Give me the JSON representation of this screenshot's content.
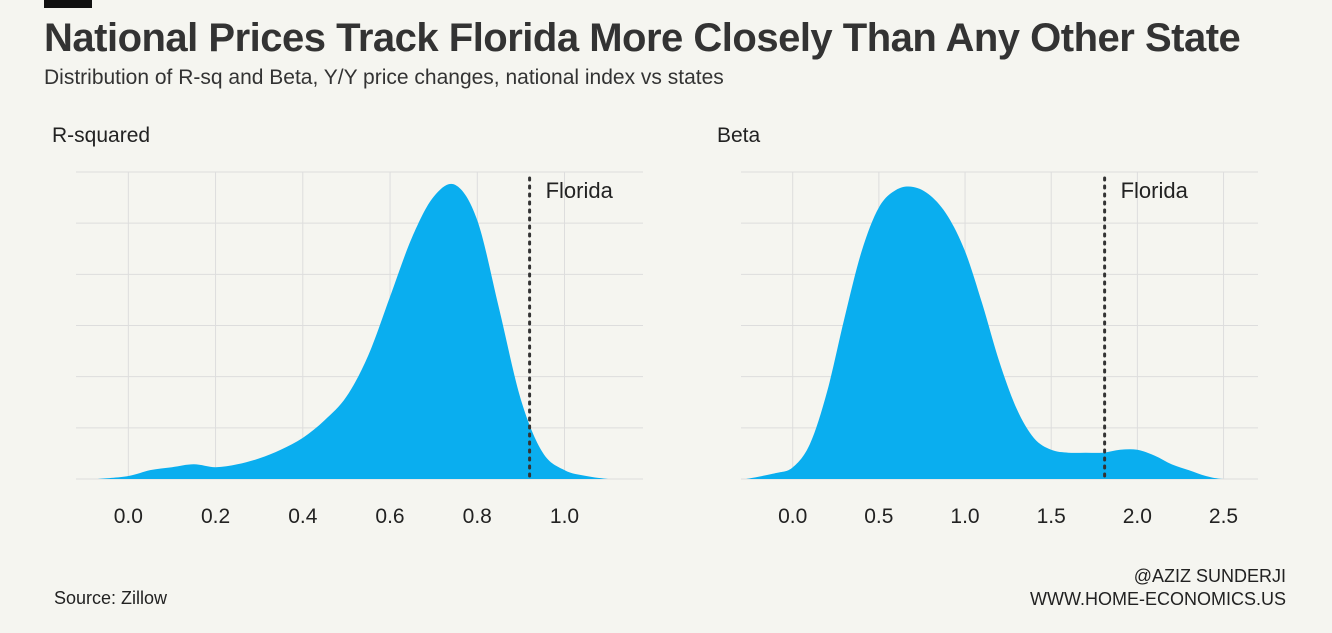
{
  "header": {
    "title": "National Prices Track Florida More Closely Than Any Other State",
    "subtitle": "Distribution of R-sq and Beta, Y/Y price changes, national index vs states"
  },
  "colors": {
    "fill": "#0aaeef",
    "grid": "#dddddd",
    "marker": "#333333"
  },
  "chart_data": [
    {
      "type": "area",
      "title": "R-squared",
      "xlim": [
        -0.12,
        1.18
      ],
      "ylim": [
        0,
        1.0
      ],
      "xticks": [
        "0.0",
        "0.2",
        "0.4",
        "0.6",
        "0.8",
        "1.0"
      ],
      "grid": true,
      "marker": {
        "label": "Florida",
        "x": 0.92
      },
      "series": [
        {
          "x": [
            -0.07,
            0.0,
            0.05,
            0.1,
            0.15,
            0.2,
            0.25,
            0.3,
            0.35,
            0.4,
            0.45,
            0.5,
            0.55,
            0.6,
            0.65,
            0.7,
            0.75,
            0.8,
            0.85,
            0.9,
            0.95,
            1.0,
            1.05,
            1.1,
            1.12
          ],
          "y": [
            0.0,
            0.01,
            0.03,
            0.04,
            0.05,
            0.04,
            0.05,
            0.07,
            0.1,
            0.14,
            0.2,
            0.28,
            0.42,
            0.62,
            0.82,
            0.96,
            1.0,
            0.88,
            0.58,
            0.27,
            0.09,
            0.03,
            0.01,
            0.0,
            0.0
          ]
        }
      ]
    },
    {
      "type": "area",
      "title": "Beta",
      "xlim": [
        -0.3,
        2.7
      ],
      "ylim": [
        0,
        1.0
      ],
      "xticks": [
        "0.0",
        "0.5",
        "1.0",
        "1.5",
        "2.0",
        "2.5"
      ],
      "grid": true,
      "marker": {
        "label": "Florida",
        "x": 1.81
      },
      "series": [
        {
          "x": [
            -0.27,
            -0.1,
            0.0,
            0.1,
            0.2,
            0.3,
            0.4,
            0.5,
            0.6,
            0.7,
            0.8,
            0.9,
            1.0,
            1.1,
            1.2,
            1.3,
            1.4,
            1.5,
            1.6,
            1.7,
            1.8,
            1.9,
            2.0,
            2.1,
            2.2,
            2.3,
            2.4,
            2.5,
            2.65
          ],
          "y": [
            0.0,
            0.02,
            0.04,
            0.12,
            0.3,
            0.55,
            0.78,
            0.93,
            0.99,
            1.0,
            0.97,
            0.9,
            0.78,
            0.6,
            0.4,
            0.24,
            0.14,
            0.1,
            0.09,
            0.09,
            0.09,
            0.1,
            0.1,
            0.08,
            0.05,
            0.03,
            0.01,
            0.0,
            0.0
          ]
        }
      ]
    }
  ],
  "footer": {
    "source": "Source: Zillow",
    "credit_line1": "@AZIZ SUNDERJI",
    "credit_line2": "WWW.HOME-ECONOMICS.US"
  }
}
